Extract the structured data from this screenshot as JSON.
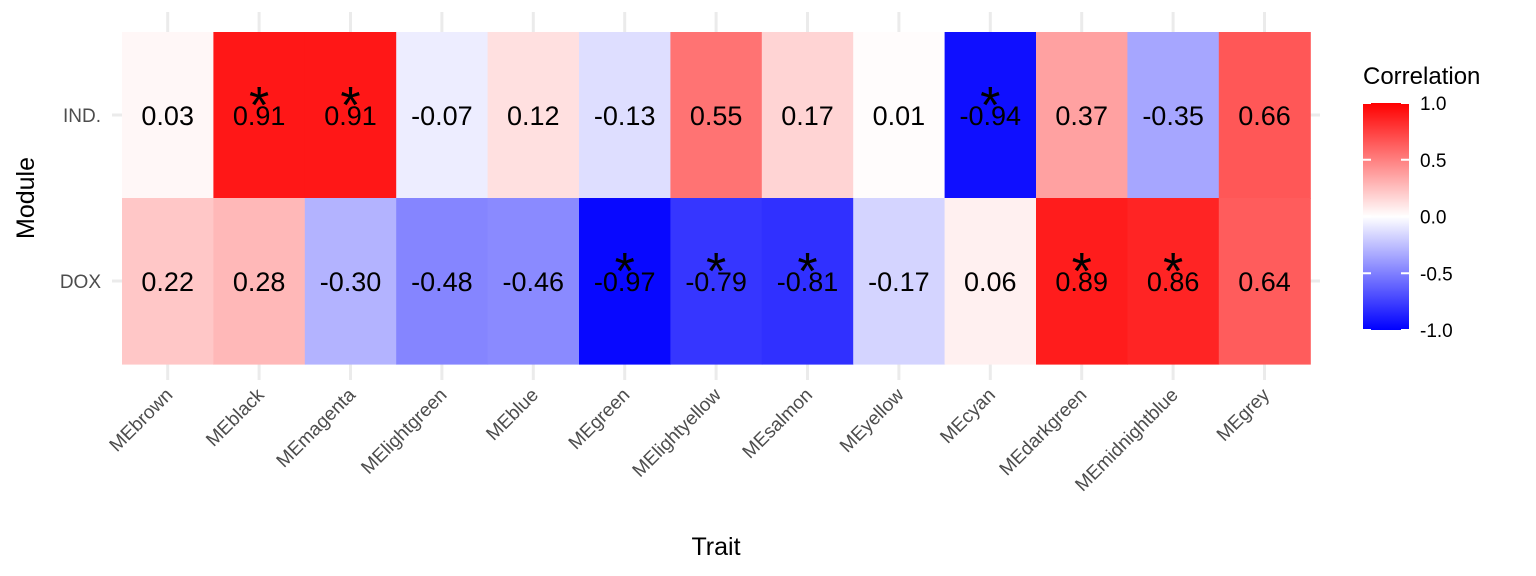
{
  "chart_data": {
    "type": "heatmap",
    "xlabel": "Trait",
    "ylabel": "Module",
    "x_categories": [
      "MEbrown",
      "MEblack",
      "MEmagenta",
      "MElightgreen",
      "MEblue",
      "MEgreen",
      "MElightyellow",
      "MEsalmon",
      "MEyellow",
      "MEcyan",
      "MEdarkgreen",
      "MEmidnightblue",
      "MEgrey"
    ],
    "y_categories": [
      "IND.",
      "DOX"
    ],
    "values": [
      [
        0.03,
        0.91,
        0.91,
        -0.07,
        0.12,
        -0.13,
        0.55,
        0.17,
        0.01,
        -0.94,
        0.37,
        -0.35,
        0.66
      ],
      [
        0.22,
        0.28,
        -0.3,
        -0.48,
        -0.46,
        -0.97,
        -0.79,
        -0.81,
        -0.17,
        0.06,
        0.89,
        0.86,
        0.64
      ]
    ],
    "labels": [
      [
        "0.03",
        "0.91",
        "0.91",
        "-0.07",
        "0.12",
        "-0.13",
        "0.55",
        "0.17",
        "0.01",
        "-0.94",
        "0.37",
        "-0.35",
        "0.66"
      ],
      [
        "0.22",
        "0.28",
        "-0.30",
        "-0.48",
        "-0.46",
        "-0.97",
        "-0.79",
        "-0.81",
        "-0.17",
        "0.06",
        "0.89",
        "0.86",
        "0.64"
      ]
    ],
    "significant": [
      [
        false,
        true,
        true,
        false,
        false,
        false,
        false,
        false,
        false,
        true,
        false,
        false,
        false
      ],
      [
        false,
        false,
        false,
        false,
        false,
        true,
        true,
        true,
        false,
        false,
        true,
        true,
        false
      ]
    ],
    "significance_marker": "*",
    "legend": {
      "title": "Correlation",
      "ticks": [
        1.0,
        0.5,
        0.0,
        -0.5,
        -1.0
      ],
      "tick_labels": [
        "1.0",
        "0.5",
        "0.0",
        "-0.5",
        "-1.0"
      ],
      "range": [
        -1,
        1
      ],
      "low_color": "#0000ff",
      "mid_color": "#ffffff",
      "high_color": "#ff0000",
      "position": "right"
    },
    "grid": true
  }
}
